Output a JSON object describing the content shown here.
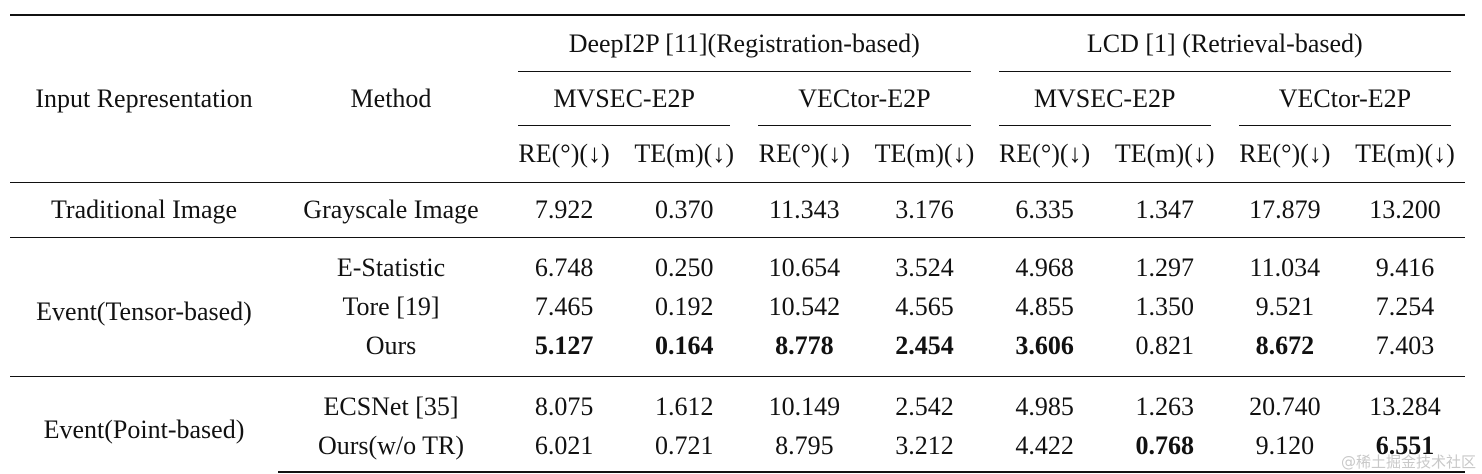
{
  "header": {
    "input_representation": "Input Representation",
    "method": "Method",
    "group_registration": "DeepI2P [11](Registration-based)",
    "group_retrieval": "LCD [1] (Retrieval-based)",
    "dataset_1": "MVSEC-E2P",
    "dataset_2": "VECtor-E2P",
    "dataset_3": "MVSEC-E2P",
    "dataset_4": "VECtor-E2P",
    "metrics": [
      "RE(°)(↓)",
      "TE(m)(↓)",
      "RE(°)(↓)",
      "TE(m)(↓)",
      "RE(°)(↓)",
      "TE(m)(↓)",
      "RE(°)(↓)",
      "TE(m)(↓)"
    ]
  },
  "groups": [
    {
      "input": "Traditional Image",
      "rows": [
        {
          "method": "Grayscale Image",
          "values": [
            "7.922",
            "0.370",
            "11.343",
            "3.176",
            "6.335",
            "1.347",
            "17.879",
            "13.200"
          ],
          "bold": []
        }
      ]
    },
    {
      "input": "Event(Tensor-based)",
      "rows": [
        {
          "method": "E-Statistic",
          "values": [
            "6.748",
            "0.250",
            "10.654",
            "3.524",
            "4.968",
            "1.297",
            "11.034",
            "9.416"
          ],
          "bold": []
        },
        {
          "method": "Tore [19]",
          "values": [
            "7.465",
            "0.192",
            "10.542",
            "4.565",
            "4.855",
            "1.350",
            "9.521",
            "7.254"
          ],
          "bold": []
        },
        {
          "method": "Ours",
          "values": [
            "5.127",
            "0.164",
            "8.778",
            "2.454",
            "3.606",
            "0.821",
            "8.672",
            "7.403"
          ],
          "bold": [
            0,
            1,
            2,
            3,
            4,
            6
          ]
        }
      ]
    },
    {
      "input": "Event(Point-based)",
      "rows": [
        {
          "method": "ECSNet [35]",
          "values": [
            "8.075",
            "1.612",
            "10.149",
            "2.542",
            "4.985",
            "1.263",
            "20.740",
            "13.284"
          ],
          "bold": []
        },
        {
          "method": "Ours(w/o TR)",
          "values": [
            "6.021",
            "0.721",
            "8.795",
            "3.212",
            "4.422",
            "0.768",
            "9.120",
            "6.551"
          ],
          "bold": [
            5,
            7
          ]
        }
      ]
    }
  ],
  "watermark": "@稀土掘金技术社区"
}
